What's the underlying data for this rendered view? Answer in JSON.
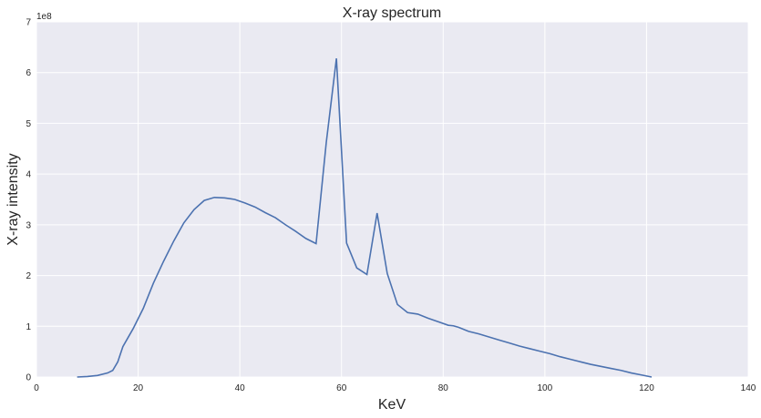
{
  "chart_data": {
    "type": "line",
    "title": "X-ray spectrum",
    "xlabel": "KeV",
    "ylabel": "X-ray intensity",
    "y_offset_text": "1e8",
    "xlim": [
      0,
      140
    ],
    "ylim": [
      0,
      7
    ],
    "xticks": [
      "0",
      "20",
      "40",
      "60",
      "80",
      "100",
      "120",
      "140"
    ],
    "yticks": [
      "0",
      "1",
      "2",
      "3",
      "4",
      "5",
      "6",
      "7"
    ],
    "grid": true,
    "background_color": "#eaeaf2",
    "line_color": "#4c72b0",
    "series": [
      {
        "x": [
          8,
          10,
          12,
          14,
          15,
          16,
          17,
          19,
          21,
          23,
          25,
          27,
          29,
          31,
          33,
          35,
          37,
          39,
          41,
          43,
          45,
          47,
          49,
          51,
          53,
          55,
          57,
          59,
          61,
          63,
          65,
          67,
          69,
          71,
          73,
          75,
          77,
          79,
          81,
          82,
          83,
          85,
          87,
          89,
          91,
          93,
          95,
          97,
          99,
          101,
          103,
          105,
          107,
          109,
          111,
          113,
          115,
          117,
          119,
          121
        ],
        "y": [
          0.0,
          0.01,
          0.03,
          0.08,
          0.13,
          0.3,
          0.6,
          0.95,
          1.35,
          1.85,
          2.28,
          2.68,
          3.04,
          3.3,
          3.48,
          3.54,
          3.53,
          3.5,
          3.43,
          3.35,
          3.24,
          3.14,
          3.0,
          2.87,
          2.73,
          2.63,
          4.62,
          6.28,
          2.64,
          2.15,
          2.02,
          3.23,
          2.04,
          1.43,
          1.27,
          1.24,
          1.16,
          1.09,
          1.02,
          1.01,
          0.98,
          0.9,
          0.85,
          0.79,
          0.73,
          0.67,
          0.61,
          0.56,
          0.51,
          0.46,
          0.4,
          0.35,
          0.3,
          0.25,
          0.21,
          0.17,
          0.13,
          0.08,
          0.04,
          0.0
        ]
      }
    ]
  }
}
